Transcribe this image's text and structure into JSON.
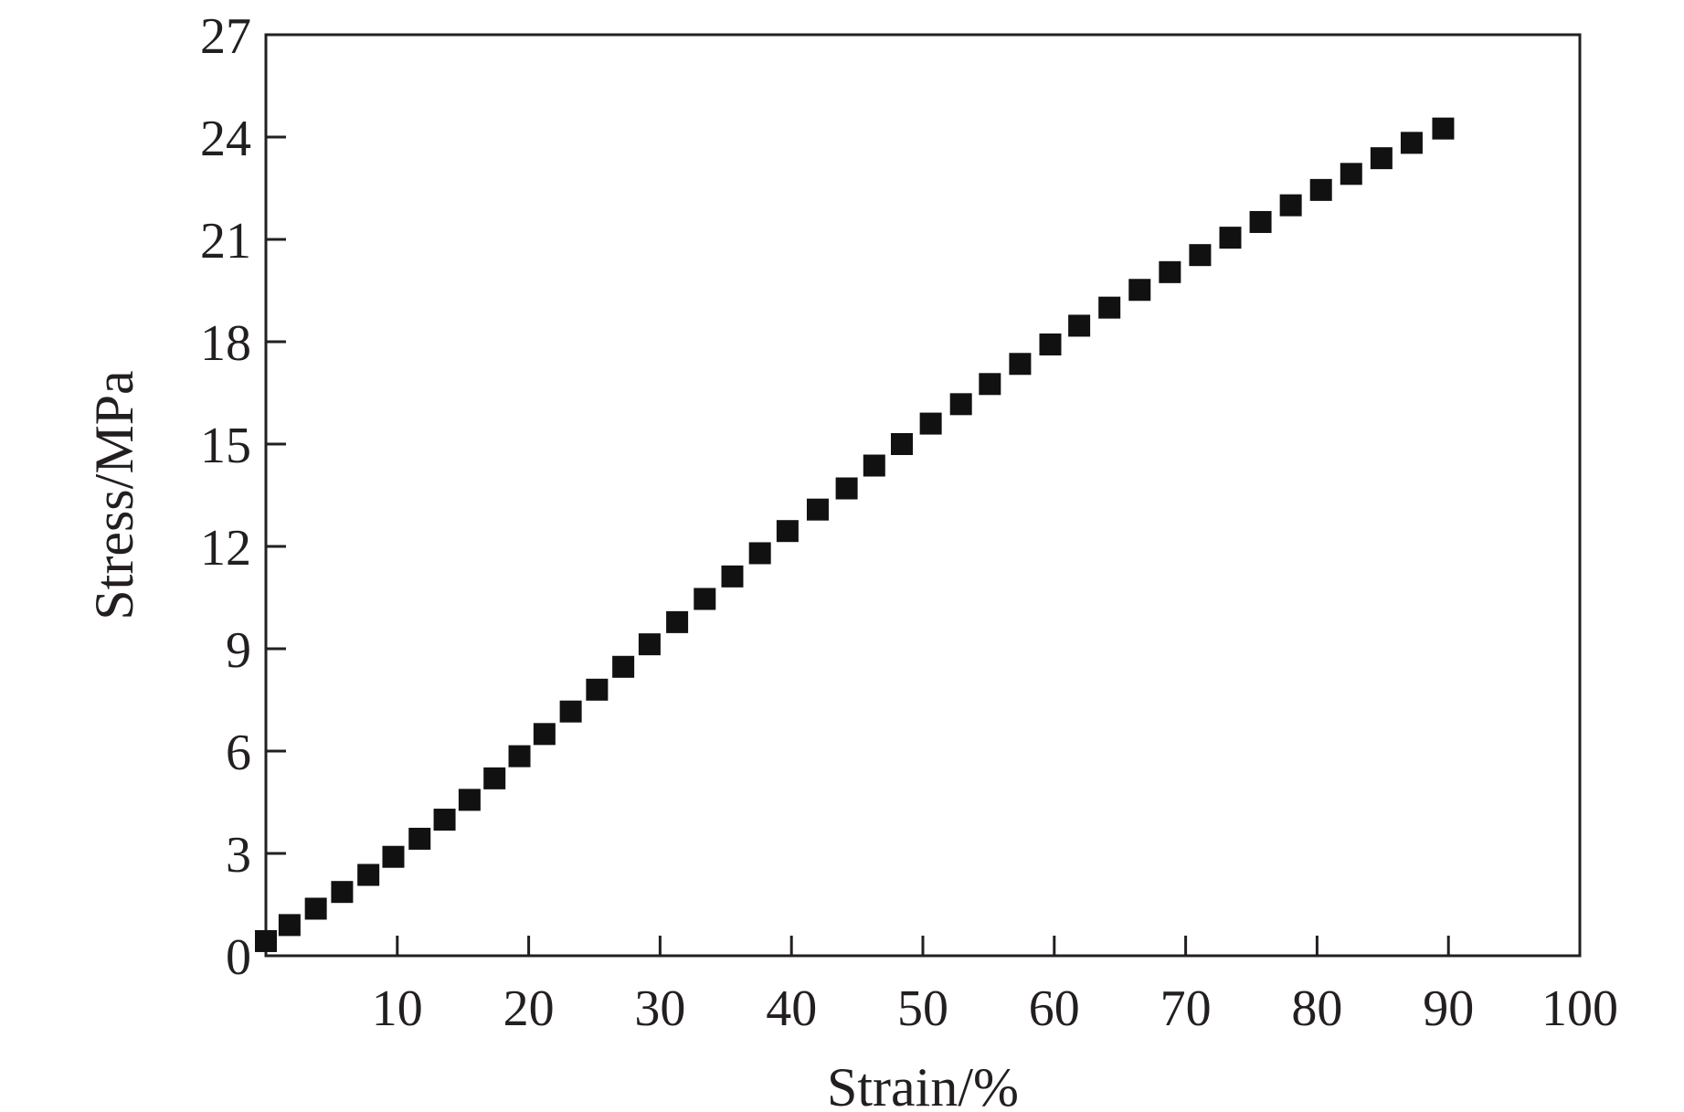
{
  "chart_data": {
    "type": "scatter",
    "title": "",
    "xlabel": "Strain/%",
    "ylabel": "Stress/MPa",
    "xlim": [
      0,
      100
    ],
    "ylim": [
      0,
      27
    ],
    "x_ticks": [
      10,
      20,
      30,
      40,
      50,
      60,
      70,
      80,
      90,
      100
    ],
    "x_tick_labels": [
      "10",
      "20",
      "30",
      "40",
      "50",
      "60",
      "70",
      "80",
      "90",
      "100"
    ],
    "y_ticks": [
      0,
      3,
      6,
      9,
      12,
      15,
      18,
      21,
      24,
      27
    ],
    "y_tick_labels": [
      "0",
      "3",
      "6",
      "9",
      "12",
      "15",
      "18",
      "21",
      "24",
      "27"
    ],
    "grid": false,
    "legend": "none",
    "marker": "square",
    "marker_color": "#111111",
    "axis_color": "#231f20",
    "series": [
      {
        "points": [
          [
            0.0,
            0.43
          ],
          [
            1.8,
            0.9
          ],
          [
            3.8,
            1.38
          ],
          [
            5.8,
            1.87
          ],
          [
            7.8,
            2.37
          ],
          [
            9.7,
            2.9
          ],
          [
            11.7,
            3.43
          ],
          [
            13.6,
            3.99
          ],
          [
            15.5,
            4.57
          ],
          [
            17.4,
            5.2
          ],
          [
            19.3,
            5.85
          ],
          [
            21.2,
            6.5
          ],
          [
            23.2,
            7.16
          ],
          [
            25.2,
            7.8
          ],
          [
            27.2,
            8.47
          ],
          [
            29.2,
            9.13
          ],
          [
            31.3,
            9.78
          ],
          [
            33.4,
            10.46
          ],
          [
            35.5,
            11.12
          ],
          [
            37.6,
            11.8
          ],
          [
            39.7,
            12.45
          ],
          [
            42.0,
            13.08
          ],
          [
            44.2,
            13.7
          ],
          [
            46.3,
            14.37
          ],
          [
            48.4,
            15.0
          ],
          [
            50.6,
            15.6
          ],
          [
            52.9,
            16.17
          ],
          [
            55.1,
            16.76
          ],
          [
            57.4,
            17.35
          ],
          [
            59.7,
            17.92
          ],
          [
            61.9,
            18.47
          ],
          [
            64.2,
            19.0
          ],
          [
            66.5,
            19.52
          ],
          [
            68.8,
            20.04
          ],
          [
            71.1,
            20.54
          ],
          [
            73.4,
            21.05
          ],
          [
            75.7,
            21.51
          ],
          [
            78.0,
            22.0
          ],
          [
            80.3,
            22.45
          ],
          [
            82.6,
            22.92
          ],
          [
            84.9,
            23.38
          ],
          [
            87.2,
            23.83
          ],
          [
            89.6,
            24.25
          ]
        ]
      }
    ]
  }
}
